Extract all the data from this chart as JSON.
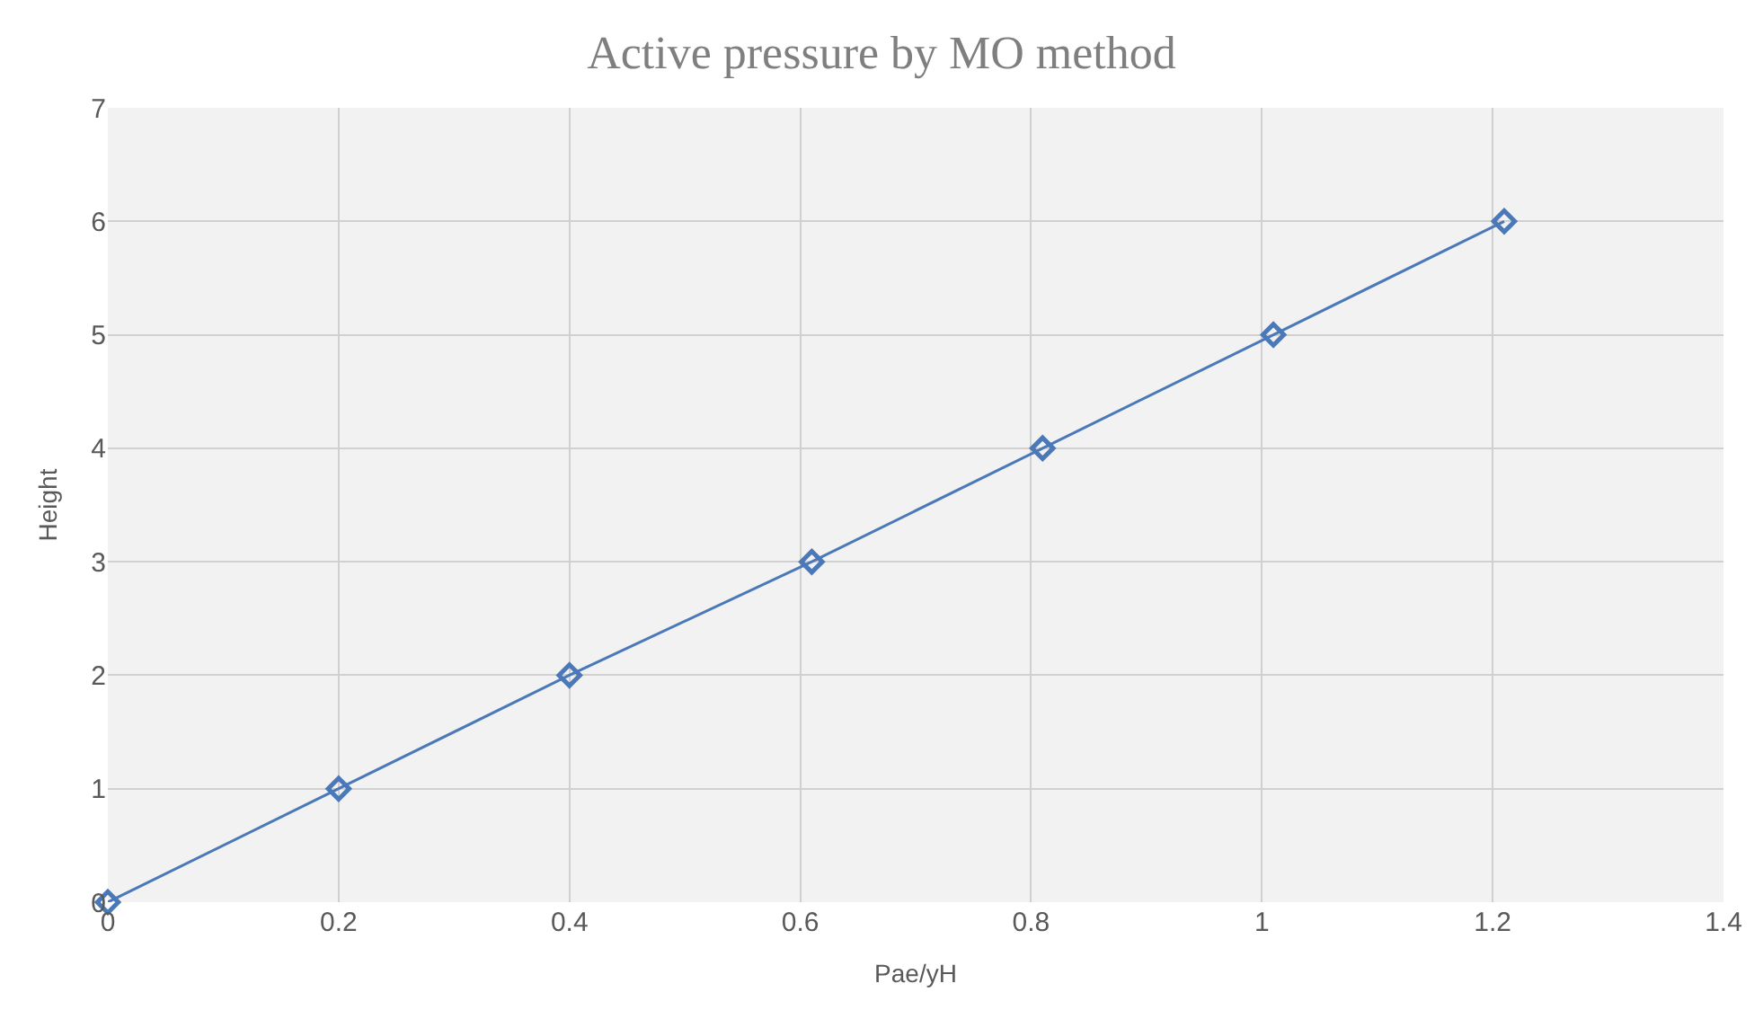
{
  "chart_data": {
    "type": "line",
    "title": "Active pressure by MO method",
    "xlabel": "Pae/yH",
    "ylabel": "Height",
    "x": [
      0,
      0.2,
      0.4,
      0.61,
      0.81,
      1.01,
      1.21
    ],
    "series": [
      {
        "color": "#4a78b8",
        "values": [
          0,
          1,
          2,
          3,
          4,
          5,
          6
        ]
      }
    ],
    "xlim": [
      0,
      1.4
    ],
    "xticks": [
      0,
      0.2,
      0.4,
      0.6,
      0.8,
      1,
      1.2,
      1.4
    ],
    "ylim": [
      0,
      7
    ],
    "yticks": [
      0,
      1,
      2,
      3,
      4,
      5,
      6,
      7
    ],
    "grid": true,
    "marker": "diamond",
    "line_style": "solid"
  }
}
